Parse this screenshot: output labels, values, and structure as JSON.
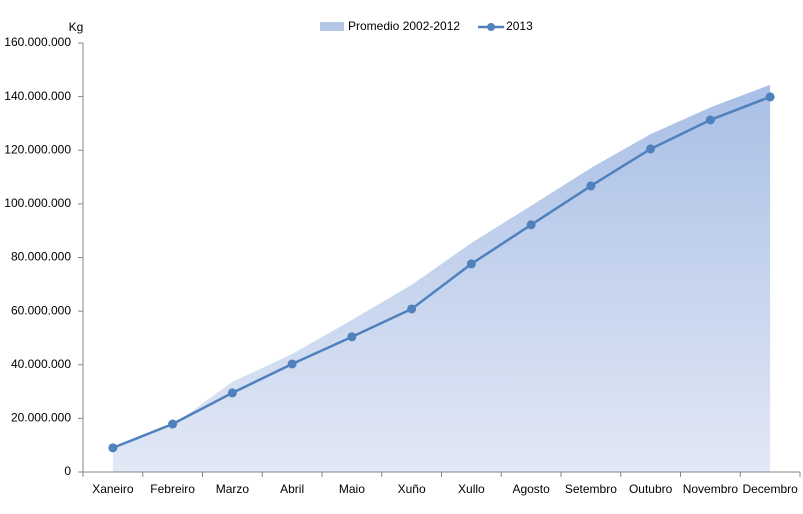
{
  "chart_data": {
    "type": "line-area",
    "y_label": "Kg",
    "categories": [
      "Xaneiro",
      "Febreiro",
      "Marzo",
      "Abril",
      "Maio",
      "Xuño",
      "Xullo",
      "Agosto",
      "Setembro",
      "Outubro",
      "Novembro",
      "Decembro"
    ],
    "series": [
      {
        "name": "Promedio 2002-2012",
        "kind": "area",
        "color": "#b4c7e7",
        "values": [
          8500000,
          17500000,
          33600000,
          44000000,
          56700000,
          69800000,
          85400000,
          99300000,
          113400000,
          126000000,
          136000000,
          144400000
        ]
      },
      {
        "name": "2013",
        "kind": "line",
        "color": "#4f81bd",
        "values": [
          9000000,
          17900000,
          29500000,
          40300000,
          50400000,
          60800000,
          77600000,
          92200000,
          106700000,
          120500000,
          131300000,
          139900000
        ]
      }
    ],
    "ylim": [
      0,
      160000000
    ],
    "yticks": [
      0,
      {
        "value": 20000000,
        "label": "20.000.000"
      },
      {
        "value": 40000000,
        "label": "40.000.000"
      },
      {
        "value": 60000000,
        "label": "60.000.000"
      },
      {
        "value": 80000000,
        "label": "80.000.000"
      },
      {
        "value": 100000000,
        "label": "100.000.000"
      },
      {
        "value": 120000000,
        "label": "120.000.000"
      },
      {
        "value": 140000000,
        "label": "140.000.000"
      },
      {
        "value": 160000000,
        "label": "160.000.000"
      }
    ],
    "legend": "top"
  }
}
